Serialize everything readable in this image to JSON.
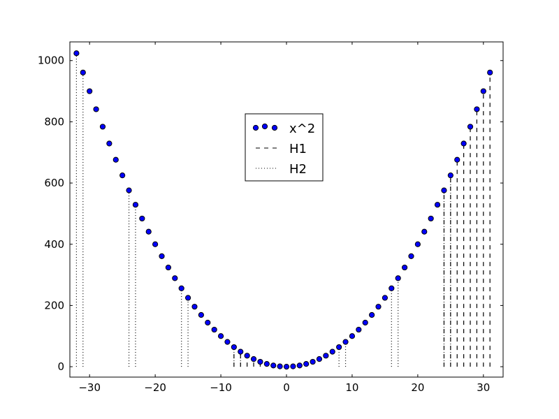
{
  "chart_data": {
    "type": "scatter",
    "title": "",
    "xlabel": "",
    "ylabel": "",
    "xlim": [
      -33,
      33
    ],
    "ylim": [
      -34,
      1061
    ],
    "xticks": [
      -30,
      -20,
      -10,
      0,
      10,
      20,
      30
    ],
    "yticks": [
      0,
      200,
      400,
      600,
      800,
      1000
    ],
    "grid": false,
    "legend_placement": "upper-center",
    "series": [
      {
        "name": "x^2",
        "kind": "scatter",
        "color": "#0000ff",
        "edgecolor": "#000000",
        "x": [
          -32,
          -31,
          -30,
          -29,
          -28,
          -27,
          -26,
          -25,
          -24,
          -23,
          -22,
          -21,
          -20,
          -19,
          -18,
          -17,
          -16,
          -15,
          -14,
          -13,
          -12,
          -11,
          -10,
          -9,
          -8,
          -7,
          -6,
          -5,
          -4,
          -3,
          -2,
          -1,
          0,
          1,
          2,
          3,
          4,
          5,
          6,
          7,
          8,
          9,
          10,
          11,
          12,
          13,
          14,
          15,
          16,
          17,
          18,
          19,
          20,
          21,
          22,
          23,
          24,
          25,
          26,
          27,
          28,
          29,
          30,
          31
        ],
        "y": [
          1024,
          961,
          900,
          841,
          784,
          729,
          676,
          625,
          576,
          529,
          484,
          441,
          400,
          361,
          324,
          289,
          256,
          225,
          196,
          169,
          144,
          121,
          100,
          81,
          64,
          49,
          36,
          25,
          16,
          9,
          4,
          1,
          0,
          1,
          4,
          9,
          16,
          25,
          36,
          49,
          64,
          81,
          100,
          121,
          144,
          169,
          196,
          225,
          256,
          289,
          324,
          361,
          400,
          441,
          484,
          529,
          576,
          625,
          676,
          729,
          784,
          841,
          900,
          961
        ]
      },
      {
        "name": "H1",
        "kind": "vlines",
        "linestyle": "dashed",
        "color": "#000000",
        "x": [
          -8,
          -7,
          -6,
          -5,
          -4,
          24,
          25,
          26,
          27,
          28,
          29,
          30,
          31
        ],
        "ymin": 0
      },
      {
        "name": "H2",
        "kind": "vlines",
        "linestyle": "dotted",
        "color": "#000000",
        "x": [
          -32,
          -31,
          -24,
          -23,
          -16,
          -15,
          -8,
          -7,
          0,
          1,
          8,
          9,
          16,
          17,
          24,
          25
        ],
        "ymin": 0
      }
    ]
  }
}
